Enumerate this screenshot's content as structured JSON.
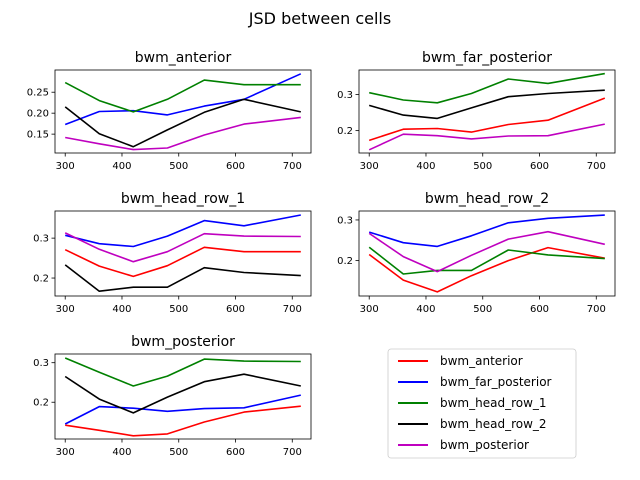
{
  "suptitle": "JSD between cells",
  "legend": {
    "placement": "lower-right",
    "entries": [
      {
        "label": "bwm_anterior",
        "color": "#ff0000"
      },
      {
        "label": "bwm_far_posterior",
        "color": "#0000ff"
      },
      {
        "label": "bwm_head_row_1",
        "color": "#008000"
      },
      {
        "label": "bwm_head_row_2",
        "color": "#000000"
      },
      {
        "label": "bwm_posterior",
        "color": "#bf00bf"
      }
    ]
  },
  "chart_data": [
    {
      "type": "line",
      "title": "bwm_anterior",
      "x": [
        300,
        360,
        420,
        480,
        545,
        615,
        715
      ],
      "xticks": [
        300,
        400,
        500,
        600,
        700
      ],
      "xlim": [
        282,
        733
      ],
      "yticks": [
        0.15,
        0.2,
        0.25
      ],
      "ytick_labels": [
        "0.15",
        "0.20",
        "0.25"
      ],
      "ylim": [
        0.105,
        0.303
      ],
      "series": [
        {
          "name": "bwm_anterior",
          "color": "#ff0000",
          "values": [
            null,
            null,
            null,
            null,
            null,
            null,
            null
          ]
        },
        {
          "name": "bwm_far_posterior",
          "color": "#0000ff",
          "values": [
            0.173,
            0.204,
            0.206,
            0.196,
            0.217,
            0.233,
            0.294
          ]
        },
        {
          "name": "bwm_head_row_1",
          "color": "#008000",
          "values": [
            0.273,
            0.23,
            0.203,
            0.233,
            0.279,
            0.268,
            0.268
          ]
        },
        {
          "name": "bwm_head_row_2",
          "color": "#000000",
          "values": [
            0.215,
            0.151,
            0.12,
            0.16,
            0.202,
            0.233,
            0.203
          ]
        },
        {
          "name": "bwm_posterior",
          "color": "#bf00bf",
          "values": [
            0.142,
            0.127,
            0.113,
            0.117,
            0.148,
            0.174,
            0.19
          ]
        }
      ]
    },
    {
      "type": "line",
      "title": "bwm_far_posterior",
      "x": [
        300,
        360,
        420,
        480,
        545,
        615,
        715
      ],
      "xticks": [
        300,
        400,
        500,
        600,
        700
      ],
      "xlim": [
        282,
        733
      ],
      "yticks": [
        0.2,
        0.3
      ],
      "ytick_labels": [
        "0.2",
        "0.3"
      ],
      "ylim": [
        0.138,
        0.368
      ],
      "series": [
        {
          "name": "bwm_anterior",
          "color": "#ff0000",
          "values": [
            0.173,
            0.204,
            0.206,
            0.196,
            0.217,
            0.229,
            0.29
          ]
        },
        {
          "name": "bwm_far_posterior",
          "color": "#0000ff",
          "values": [
            null,
            null,
            null,
            null,
            null,
            null,
            null
          ]
        },
        {
          "name": "bwm_head_row_1",
          "color": "#008000",
          "values": [
            0.305,
            0.285,
            0.277,
            0.303,
            0.343,
            0.331,
            0.358
          ]
        },
        {
          "name": "bwm_head_row_2",
          "color": "#000000",
          "values": [
            0.27,
            0.243,
            0.234,
            0.263,
            0.294,
            0.303,
            0.312
          ]
        },
        {
          "name": "bwm_posterior",
          "color": "#bf00bf",
          "values": [
            0.147,
            0.19,
            0.186,
            0.177,
            0.185,
            0.186,
            0.218
          ]
        }
      ]
    },
    {
      "type": "line",
      "title": "bwm_head_row_1",
      "x": [
        300,
        360,
        420,
        480,
        545,
        615,
        715
      ],
      "xticks": [
        300,
        400,
        500,
        600,
        700
      ],
      "xlim": [
        282,
        733
      ],
      "yticks": [
        0.2,
        0.3
      ],
      "ytick_labels": [
        "0.2",
        "0.3"
      ],
      "ylim": [
        0.155,
        0.368
      ],
      "series": [
        {
          "name": "bwm_anterior",
          "color": "#ff0000",
          "values": [
            0.271,
            0.23,
            0.204,
            0.231,
            0.277,
            0.266,
            0.266
          ]
        },
        {
          "name": "bwm_far_posterior",
          "color": "#0000ff",
          "values": [
            0.307,
            0.286,
            0.279,
            0.305,
            0.344,
            0.331,
            0.358
          ]
        },
        {
          "name": "bwm_head_row_1",
          "color": "#008000",
          "values": [
            null,
            null,
            null,
            null,
            null,
            null,
            null
          ]
        },
        {
          "name": "bwm_head_row_2",
          "color": "#000000",
          "values": [
            0.233,
            0.167,
            0.177,
            0.177,
            0.226,
            0.214,
            0.206
          ]
        },
        {
          "name": "bwm_posterior",
          "color": "#bf00bf",
          "values": [
            0.313,
            0.272,
            0.241,
            0.266,
            0.311,
            0.305,
            0.304
          ]
        }
      ]
    },
    {
      "type": "line",
      "title": "bwm_head_row_2",
      "x": [
        300,
        360,
        420,
        480,
        545,
        615,
        715
      ],
      "xticks": [
        300,
        400,
        500,
        600,
        700
      ],
      "xlim": [
        282,
        733
      ],
      "yticks": [
        0.2,
        0.3
      ],
      "ytick_labels": [
        "0.2",
        "0.3"
      ],
      "ylim": [
        0.113,
        0.322
      ],
      "series": [
        {
          "name": "bwm_anterior",
          "color": "#ff0000",
          "values": [
            0.215,
            0.152,
            0.123,
            0.163,
            0.2,
            0.232,
            0.206
          ]
        },
        {
          "name": "bwm_far_posterior",
          "color": "#0000ff",
          "values": [
            0.27,
            0.244,
            0.235,
            0.261,
            0.293,
            0.304,
            0.312
          ]
        },
        {
          "name": "bwm_head_row_1",
          "color": "#008000",
          "values": [
            0.233,
            0.167,
            0.176,
            0.176,
            0.226,
            0.214,
            0.205
          ]
        },
        {
          "name": "bwm_head_row_2",
          "color": "#000000",
          "values": [
            null,
            null,
            null,
            null,
            null,
            null,
            null
          ]
        },
        {
          "name": "bwm_posterior",
          "color": "#bf00bf",
          "values": [
            0.267,
            0.21,
            0.173,
            0.213,
            0.253,
            0.271,
            0.24
          ]
        }
      ]
    },
    {
      "type": "line",
      "title": "bwm_posterior",
      "x": [
        300,
        360,
        420,
        480,
        545,
        615,
        715
      ],
      "xticks": [
        300,
        400,
        500,
        600,
        700
      ],
      "xlim": [
        282,
        733
      ],
      "yticks": [
        0.2,
        0.3
      ],
      "ytick_labels": [
        "0.2",
        "0.3"
      ],
      "ylim": [
        0.107,
        0.322
      ],
      "series": [
        {
          "name": "bwm_anterior",
          "color": "#ff0000",
          "values": [
            0.142,
            0.129,
            0.115,
            0.12,
            0.15,
            0.175,
            0.19
          ]
        },
        {
          "name": "bwm_far_posterior",
          "color": "#0000ff",
          "values": [
            0.145,
            0.189,
            0.185,
            0.177,
            0.184,
            0.186,
            0.218
          ]
        },
        {
          "name": "bwm_head_row_1",
          "color": "#008000",
          "values": [
            0.312,
            0.276,
            0.241,
            0.266,
            0.309,
            0.304,
            0.303
          ]
        },
        {
          "name": "bwm_head_row_2",
          "color": "#000000",
          "values": [
            0.265,
            0.208,
            0.173,
            0.213,
            0.252,
            0.271,
            0.241
          ]
        },
        {
          "name": "bwm_posterior",
          "color": "#bf00bf",
          "values": [
            null,
            null,
            null,
            null,
            null,
            null,
            null
          ]
        }
      ]
    }
  ]
}
